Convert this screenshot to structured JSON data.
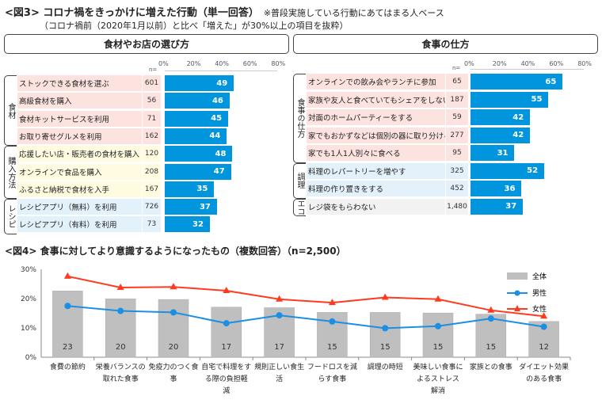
{
  "fig3": {
    "title": "<図3> コロナ禍をきっかけに増えた行動（単一回答）",
    "note": "※普段実施している行動にあてはまる人ベース",
    "subtitle": "（コロナ禍前（2020年1月以前）と比べ「増えた」が30%以上の項目を抜粋）",
    "n_label": "n=",
    "ticks": [
      "0%",
      "20%",
      "40%",
      "60%",
      "80%"
    ],
    "bar_color": "#0095dd",
    "left": {
      "heading": "食材やお店の選び方",
      "groups": [
        {
          "label": "食材",
          "rows": 4,
          "color": "#fde3e0"
        },
        {
          "label": "購入方法",
          "rows": 3,
          "color": "#fffbe0"
        },
        {
          "label": "レシピ",
          "rows": 2,
          "color": "#e3f1fb"
        }
      ],
      "rows": [
        {
          "label": "ストックできる食材を選ぶ",
          "n": "601",
          "value": 49
        },
        {
          "label": "高級食材を購入",
          "n": "56",
          "value": 46
        },
        {
          "label": "食材キットサービスを利用",
          "n": "71",
          "value": 45
        },
        {
          "label": "お取り寄せグルメを利用",
          "n": "162",
          "value": 44
        },
        {
          "label": "応援したい店・販売者の食材を購入",
          "n": "120",
          "value": 48
        },
        {
          "label": "オンラインで食品を購入",
          "n": "208",
          "value": 47
        },
        {
          "label": "ふるさと納税で食材を入手",
          "n": "167",
          "value": 35
        },
        {
          "label": "レシピアプリ（無料）を利用",
          "n": "726",
          "value": 37
        },
        {
          "label": "レシピアプリ（有料）を利用",
          "n": "73",
          "value": 32
        }
      ]
    },
    "right": {
      "heading": "食事の仕方",
      "groups": [
        {
          "label": "食事の仕方",
          "rows": 5,
          "color": "#fde3e0"
        },
        {
          "label": "調理",
          "rows": 2,
          "color": "#e3f1fb"
        },
        {
          "label": "エコ",
          "rows": 1,
          "color": "#f2f2f2"
        }
      ],
      "rows": [
        {
          "label": "オンラインでの飲み会やランチに参加",
          "n": "65",
          "value": 65
        },
        {
          "label": "家族や友人と食べていてもシェアをしない",
          "n": "187",
          "value": 55
        },
        {
          "label": "対面のホームパーティーをする",
          "n": "59",
          "value": 42
        },
        {
          "label": "家でもおかずなどは個別の器に取り分ける",
          "n": "277",
          "value": 42
        },
        {
          "label": "家でも1人1人別々に食べる",
          "n": "95",
          "value": 31
        },
        {
          "label": "料理のレパートリーを増やす",
          "n": "325",
          "value": 52
        },
        {
          "label": "料理の作り置きをする",
          "n": "452",
          "value": 36
        },
        {
          "label": "レジ袋をもらわない",
          "n": "1,480",
          "value": 37
        }
      ]
    }
  },
  "chart_data": {
    "type": "bar+line",
    "title": "<図4> 食事に対してより意識するようになったもの（複数回答）（n=2,500）",
    "categories": [
      "食費の節約",
      "栄養バランスの取れた食事",
      "免疫力のつく食事",
      "自宅で料理をする際の負担軽減",
      "規則正しい食生活",
      "フードロスを減らす食事",
      "調理の時短",
      "美味しい食事によるストレス解消",
      "家族との食事",
      "ダイエット効果のある食事"
    ],
    "yticks": [
      "0%",
      "10%",
      "20%",
      "30%"
    ],
    "ylim": [
      0,
      30
    ],
    "legend_position": "top-right",
    "series": [
      {
        "name": "全体",
        "type": "bar",
        "color": "#bfbfbf",
        "values": [
          22.6,
          19.9,
          19.7,
          17.1,
          16.9,
          15.3,
          15.3,
          15.1,
          14.7,
          12.2
        ],
        "labels": [
          "23",
          "20",
          "20",
          "17",
          "17",
          "15",
          "15",
          "15",
          "15",
          "12"
        ]
      },
      {
        "name": "男性",
        "type": "line",
        "color": "#1a8fe3",
        "values": [
          17.5,
          15.8,
          15.3,
          11.6,
          14.3,
          12.2,
          9.9,
          10.6,
          13.2,
          10.4
        ]
      },
      {
        "name": "女性",
        "type": "line",
        "color": "#ff3b1f",
        "values": [
          27.6,
          23.8,
          24.0,
          22.7,
          19.8,
          18.6,
          20.4,
          19.8,
          16.0,
          14.0
        ]
      }
    ]
  }
}
